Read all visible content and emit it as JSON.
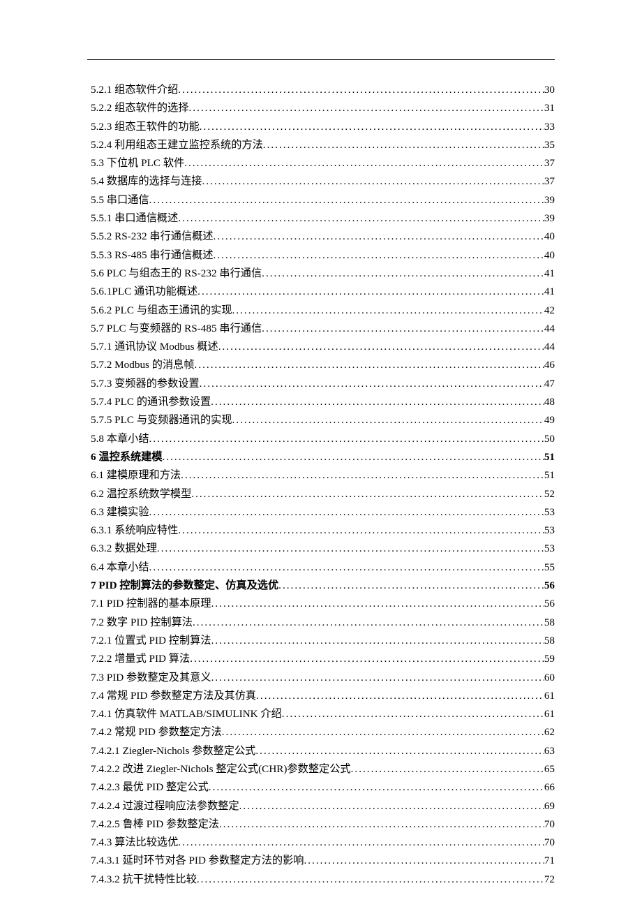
{
  "entries": [
    {
      "label": "5.2.1 组态软件介绍 ",
      "page": "30",
      "bold": false
    },
    {
      "label": "5.2.2 组态软件的选择 ",
      "page": "31",
      "bold": false
    },
    {
      "label": "5.2.3 组态王软件的功能 ",
      "page": "33",
      "bold": false
    },
    {
      "label": "5.2.4 利用组态王建立监控系统的方法 ",
      "page": "35",
      "bold": false
    },
    {
      "label": "5.3 下位机 PLC 软件 ",
      "page": "37",
      "bold": false
    },
    {
      "label": "5.4 数据库的选择与连接 ",
      "page": "37",
      "bold": false
    },
    {
      "label": "5.5 串口通信 ",
      "page": "39",
      "bold": false
    },
    {
      "label": "5.5.1 串口通信概述 ",
      "page": "39",
      "bold": false
    },
    {
      "label": "5.5.2  RS-232 串行通信概述 ",
      "page": "40",
      "bold": false
    },
    {
      "label": "5.5.3  RS-485 串行通信概述 ",
      "page": "40",
      "bold": false
    },
    {
      "label": "5.6  PLC 与组态王的 RS-232 串行通信 ",
      "page": "41",
      "bold": false
    },
    {
      "label": "5.6.1PLC 通讯功能概述 ",
      "page": "41",
      "bold": false
    },
    {
      "label": "5.6.2 PLC 与组态王通讯的实现 ",
      "page": "42",
      "bold": false
    },
    {
      "label": "5.7  PLC 与变频器的 RS-485 串行通信 ",
      "page": "44",
      "bold": false
    },
    {
      "label": "5.7.1 通讯协议 Modbus 概述 ",
      "page": "44",
      "bold": false
    },
    {
      "label": "5.7.2 Modbus 的消息帧 ",
      "page": "46",
      "bold": false
    },
    {
      "label": "5.7.3 变频器的参数设置 ",
      "page": "47",
      "bold": false
    },
    {
      "label": "5.7.4 PLC 的通讯参数设置 ",
      "page": "48",
      "bold": false
    },
    {
      "label": "5.7.5 PLC 与变频器通讯的实现 ",
      "page": "49",
      "bold": false
    },
    {
      "label": "5.8 本章小结 ",
      "page": "50",
      "bold": false
    },
    {
      "label": "6 温控系统建模 ",
      "page": "51",
      "bold": true
    },
    {
      "label": "6.1 建模原理和方法 ",
      "page": "51",
      "bold": false
    },
    {
      "label": "6.2 温控系统数学模型 ",
      "page": "52",
      "bold": false
    },
    {
      "label": "6.3 建模实验 ",
      "page": "53",
      "bold": false
    },
    {
      "label": "6.3.1 系统响应特性 ",
      "page": "53",
      "bold": false
    },
    {
      "label": "6.3.2 数据处理 ",
      "page": "53",
      "bold": false
    },
    {
      "label": "6.4 本章小结 ",
      "page": "55",
      "bold": false
    },
    {
      "label": "7  PID 控制算法的参数整定、仿真及选优 ",
      "page": "56",
      "bold": true
    },
    {
      "label": "7.1 PID 控制器的基本原理 ",
      "page": "56",
      "bold": false
    },
    {
      "label": "7.2 数字 PID 控制算法 ",
      "page": "58",
      "bold": false
    },
    {
      "label": "7.2.1 位置式 PID 控制算法 ",
      "page": "58",
      "bold": false
    },
    {
      "label": "7.2.2 增量式 PID 算法 ",
      "page": "59",
      "bold": false
    },
    {
      "label": "7.3  PID 参数整定及其意义 ",
      "page": "60",
      "bold": false
    },
    {
      "label": "7.4 常规 PID 参数整定方法及其仿真 ",
      "page": "61",
      "bold": false
    },
    {
      "label": "7.4.1 仿真软件 MATLAB/SIMULINK 介绍 ",
      "page": "61",
      "bold": false
    },
    {
      "label": "7.4.2 常规 PID 参数整定方法 ",
      "page": "62",
      "bold": false
    },
    {
      "label": "7.4.2.1 Ziegler-Nichols 参数整定公式 ",
      "page": "63",
      "bold": false
    },
    {
      "label": "7.4.2.2 改进 Ziegler-Nichols 整定公式(CHR)参数整定公式 ",
      "page": "65",
      "bold": false
    },
    {
      "label": "7.4.2.3 最优 PID 整定公式 ",
      "page": "66",
      "bold": false
    },
    {
      "label": "7.4.2.4 过渡过程响应法参数整定 ",
      "page": "69",
      "bold": false
    },
    {
      "label": "7.4.2.5 鲁棒 PID 参数整定法 ",
      "page": "70",
      "bold": false
    },
    {
      "label": "7.4.3 算法比较选优 ",
      "page": "70",
      "bold": false
    },
    {
      "label": "7.4.3.1 延时环节对各 PID 参数整定方法的影响 ",
      "page": "71",
      "bold": false
    },
    {
      "label": "7.4.3.2 抗干扰特性比较 ",
      "page": "72",
      "bold": false
    }
  ]
}
